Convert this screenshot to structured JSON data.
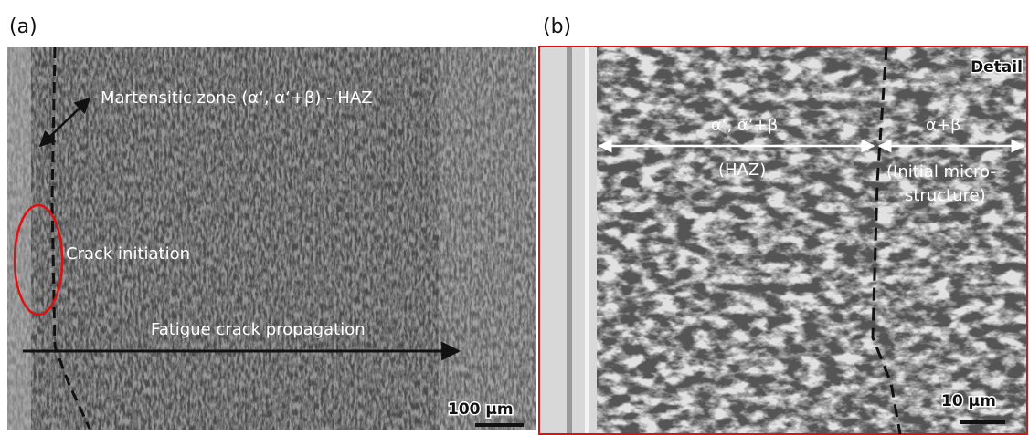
{
  "panels": [
    {
      "label": "(a)",
      "annotations": [
        "Martensitic zone (α‘, α‘+β) - HAZ",
        "Crack initiation",
        "Fatigue crack propagation"
      ],
      "scale_bar": "100 µm"
    },
    {
      "label": "(b)",
      "corner": "Detail",
      "annotations": [
        "α‘, α‘+β",
        "(HAZ)",
        "α+β",
        "(Initial micro-",
        "structure)"
      ],
      "scale_bar": "10 µm"
    }
  ]
}
